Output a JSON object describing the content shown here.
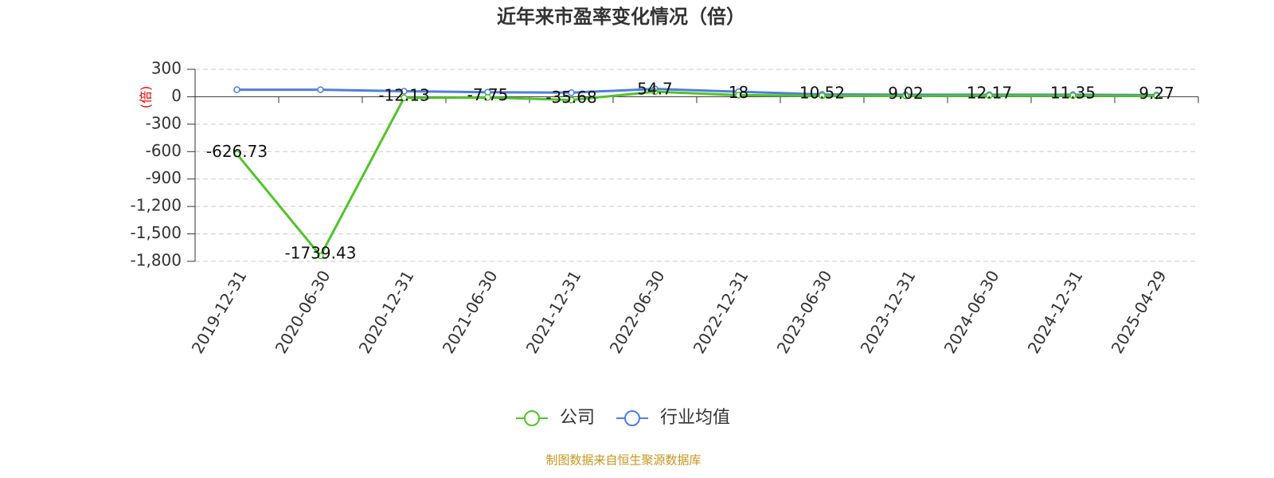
{
  "chart_data": {
    "type": "line",
    "title": "近年来市盈率变化情况（倍）",
    "y_label": "(倍)",
    "categories": [
      "2019-12-31",
      "2020-06-30",
      "2020-12-31",
      "2021-06-30",
      "2021-12-31",
      "2022-06-30",
      "2022-12-31",
      "2023-06-30",
      "2023-12-31",
      "2024-06-30",
      "2024-12-31",
      "2025-04-29"
    ],
    "series": [
      {
        "name": "公司",
        "color": "#52c22b",
        "values": [
          -626.73,
          -1739.43,
          -12.13,
          -7.75,
          -35.68,
          54.7,
          18,
          10.52,
          9.02,
          12.17,
          11.35,
          9.27
        ],
        "labels": true
      },
      {
        "name": "行业均值",
        "color": "#4e7fdc",
        "values": [
          77,
          77,
          60,
          50,
          45,
          85,
          55,
          25,
          22,
          22,
          22,
          18
        ],
        "labels": false
      }
    ],
    "ylim": [
      -1800,
      300
    ],
    "yticks": [
      300,
      0,
      -300,
      -600,
      -900,
      {
        "value": -1200,
        "label": "-1,200"
      },
      {
        "value": -1500,
        "label": "-1,500"
      },
      {
        "value": -1800,
        "label": "-1,800"
      }
    ],
    "grid": true,
    "source": "制图数据来自恒生聚源数据库"
  }
}
